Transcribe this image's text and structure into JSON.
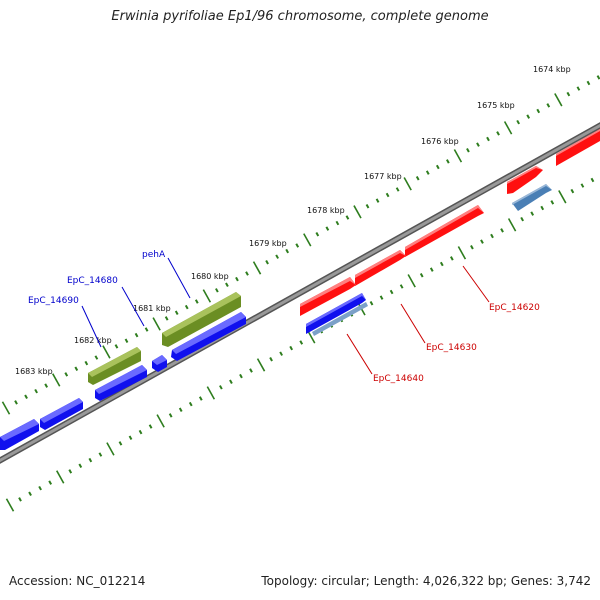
{
  "title": "Erwinia pyrifoliae Ep1/96 chromosome, complete genome",
  "footer": {
    "accession": "Accession: NC_012214",
    "summary": "Topology: circular; Length: 4,026,322 bp; Genes: 3,742"
  },
  "colors": {
    "background": "#ffffff",
    "backbone": "#808080",
    "ticks": "#2e7d1e",
    "forward_gene": "#ff1010",
    "forward_gene_alt": "#4a7fb5",
    "reverse_gene": "#1010ee",
    "reverse_gene_alt": "#6b8e23",
    "label_reverse": "#0000cc",
    "label_forward": "#cc0000"
  },
  "scale_labels": [
    "1674 kbp",
    "1675 kbp",
    "1676 kbp",
    "1677 kbp",
    "1678 kbp",
    "1679 kbp",
    "1680 kbp",
    "1681 kbp",
    "1682 kbp",
    "1683 kbp"
  ],
  "gene_labels": {
    "reverse": [
      "pehA",
      "EpC_14680",
      "EpC_14690"
    ],
    "forward": [
      "EpC_14620",
      "EpC_14630",
      "EpC_14640"
    ]
  }
}
